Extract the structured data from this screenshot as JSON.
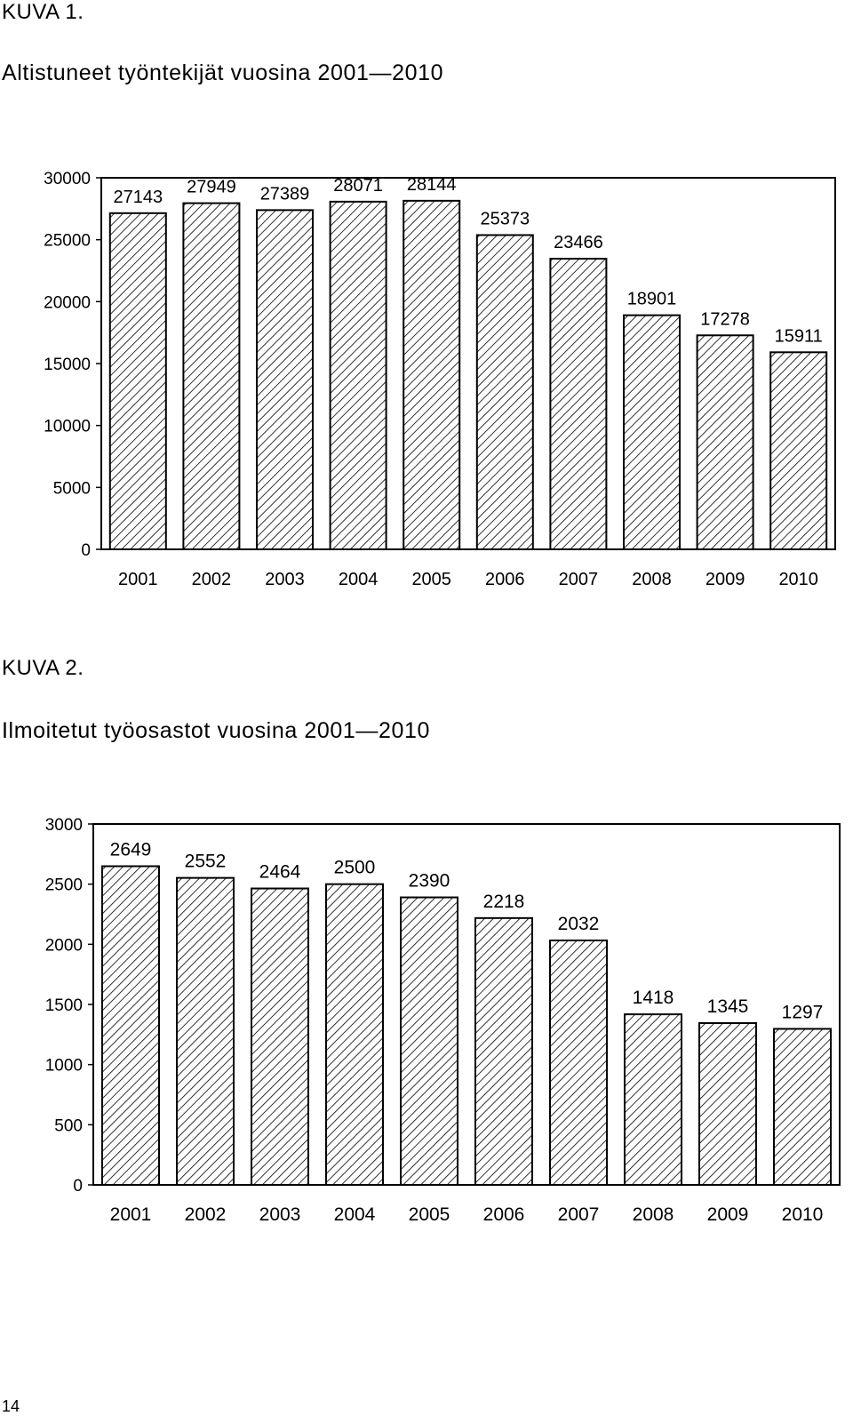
{
  "figures": [
    {
      "label": "KUVA 1.",
      "title": "Altistuneet työntekijät vuosina 2001—2010"
    },
    {
      "label": "KUVA 2.",
      "title": "Ilmoitetut työosastot vuosina 2001—2010"
    }
  ],
  "page_number": "14",
  "colors": {
    "bar_fill": "#ffffff",
    "bar_hatch": "#000000",
    "axis": "#000000",
    "background": "#ffffff"
  },
  "chart_data": [
    {
      "type": "bar",
      "title": "Altistuneet työntekijät vuosina 2001—2010",
      "xlabel": "",
      "ylabel": "",
      "categories": [
        "2001",
        "2002",
        "2003",
        "2004",
        "2005",
        "2006",
        "2007",
        "2008",
        "2009",
        "2010"
      ],
      "values": [
        27143,
        27949,
        27389,
        28071,
        28144,
        25373,
        23466,
        18901,
        17278,
        15911
      ],
      "data_labels": [
        "27143",
        "27949",
        "27389",
        "28071",
        "28144",
        "25373",
        "23466",
        "18901",
        "17278",
        "15911"
      ],
      "yticks": [
        "0",
        "5000",
        "10000",
        "15000",
        "20000",
        "25000",
        "30000"
      ],
      "ylim": [
        0,
        30000
      ],
      "grid": false,
      "legend": "none",
      "bar_pattern": "diagonal-hatch"
    },
    {
      "type": "bar",
      "title": "Ilmoitetut työosastot vuosina 2001—2010",
      "xlabel": "",
      "ylabel": "",
      "categories": [
        "2001",
        "2002",
        "2003",
        "2004",
        "2005",
        "2006",
        "2007",
        "2008",
        "2009",
        "2010"
      ],
      "values": [
        2649,
        2552,
        2464,
        2500,
        2390,
        2218,
        2032,
        1418,
        1345,
        1297
      ],
      "data_labels": [
        "2649",
        "2552",
        "2464",
        "2500",
        "2390",
        "2218",
        "2032",
        "1418",
        "1345",
        "1297"
      ],
      "yticks": [
        "0",
        "500",
        "1000",
        "1500",
        "2000",
        "2500",
        "3000"
      ],
      "ylim": [
        0,
        3000
      ],
      "grid": false,
      "legend": "none",
      "bar_pattern": "diagonal-hatch"
    }
  ]
}
